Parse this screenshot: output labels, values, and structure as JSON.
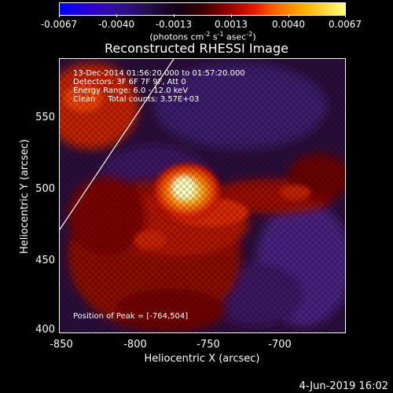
{
  "colorbar": {
    "tick_labels": [
      "-0.0067",
      "-0.0040",
      "-0.0013",
      "0.0013",
      "0.0040",
      "0.0067"
    ],
    "units_label": "(photons cm",
    "units_exp1": "-2",
    "units_mid1": " s",
    "units_exp2": "-1",
    "units_mid2": " asec",
    "units_exp3": "-2",
    "units_end": ")"
  },
  "title": "Reconstructed RHESSI Image",
  "info": {
    "time_range": "13-Dec-2014 01:56:20.000 to 01:57:20.000",
    "detectors": "Detectors: 3F 6F 7F 9F, Att 0",
    "energy": "Energy Range: 6.0 - 12.0 keV",
    "clean": "Clean     Total counts: 3.57E+03",
    "peak": "Position of Peak = [-764,504]"
  },
  "x_axis": {
    "title": "Heliocentric X (arcsec)",
    "ticks": [
      "-850",
      "-800",
      "-750",
      "-700"
    ]
  },
  "y_axis": {
    "title": "Heliocentric Y (arcsec)",
    "ticks": [
      "550",
      "500",
      "450",
      "400"
    ]
  },
  "timestamp": "4-Jun-2019 16:02"
}
